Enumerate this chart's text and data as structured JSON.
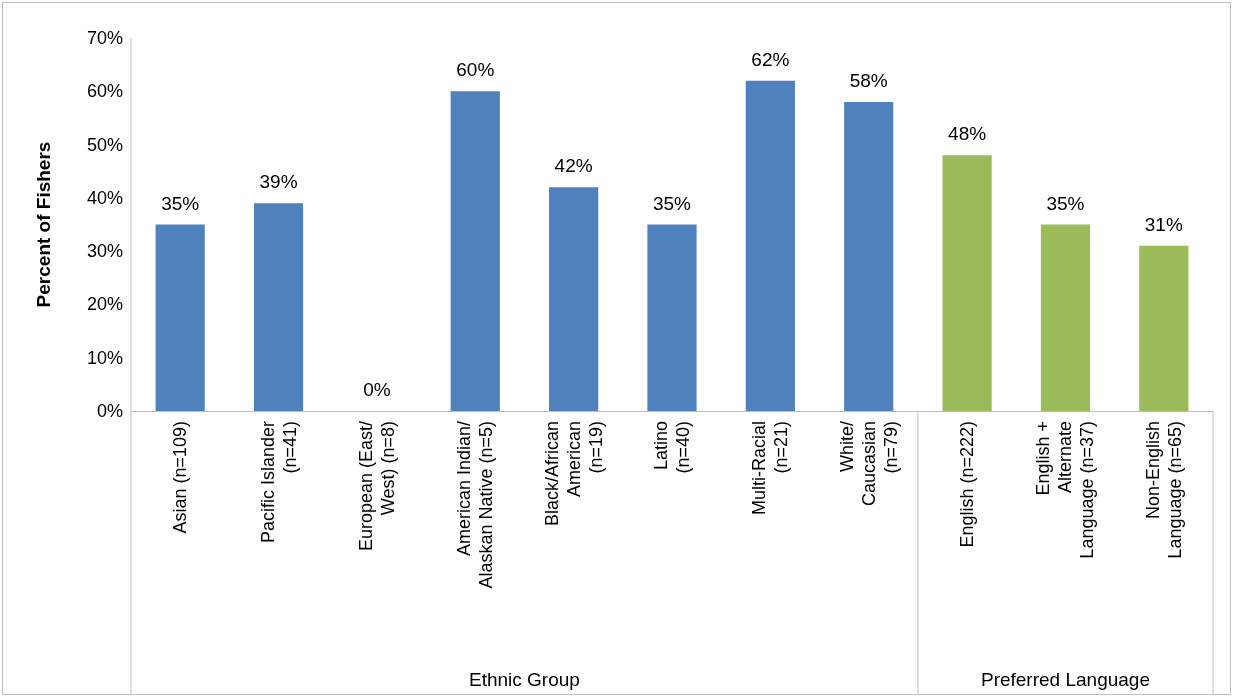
{
  "chart_data": {
    "type": "bar",
    "ylabel": "Percent of Fishers",
    "categories": [
      "Asian (n=109)",
      "Pacific Islander\n(n=41)",
      "European (East/\nWest) (n=8)",
      "American Indian/\nAlaskan Native (n=5)",
      "Black/African\nAmerican\n(n=19)",
      "Latino\n(n=40)",
      "Multi-Racial\n(n=21)",
      "White/\nCaucasian\n(n=79)",
      "English (n=222)",
      "English +\nAlternate\nLanguage (n=37)",
      "Non-English\nLanguage (n=65)"
    ],
    "values": [
      35,
      39,
      0,
      60,
      42,
      35,
      62,
      58,
      48,
      35,
      31
    ],
    "colors": [
      "#4f81bd",
      "#4f81bd",
      "#4f81bd",
      "#4f81bd",
      "#4f81bd",
      "#4f81bd",
      "#4f81bd",
      "#4f81bd",
      "#9bbb59",
      "#9bbb59",
      "#9bbb59"
    ],
    "value_labels": [
      "35%",
      "39%",
      "0%",
      "60%",
      "42%",
      "35%",
      "62%",
      "58%",
      "48%",
      "35%",
      "31%"
    ],
    "ylim": [
      0,
      70
    ],
    "yticks": [
      {
        "value": 0,
        "label": "0%"
      },
      {
        "value": 10,
        "label": "10%"
      },
      {
        "value": 20,
        "label": "20%"
      },
      {
        "value": 30,
        "label": "30%"
      },
      {
        "value": 40,
        "label": "40%"
      },
      {
        "value": 50,
        "label": "50%"
      },
      {
        "value": 60,
        "label": "60%"
      },
      {
        "value": 70,
        "label": "70%"
      }
    ],
    "annotations": [
      "Ethnic Group",
      "Preferred Language"
    ],
    "grid": false
  }
}
